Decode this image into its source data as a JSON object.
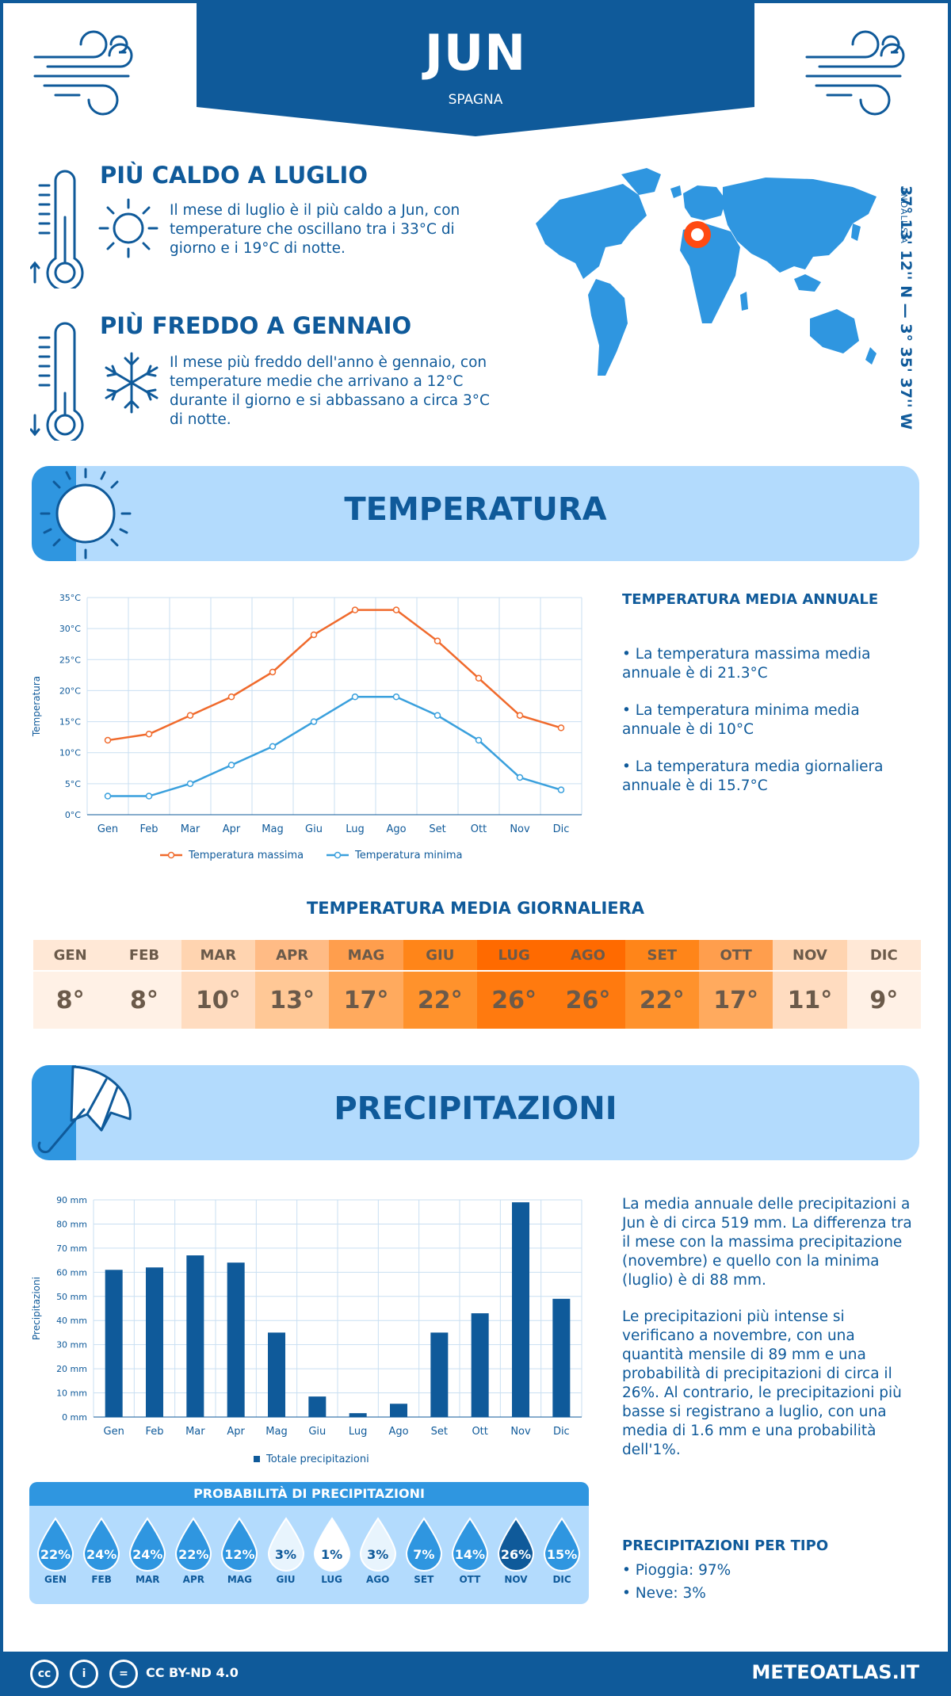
{
  "header": {
    "city": "JUN",
    "country": "SPAGNA"
  },
  "location": {
    "coords": "37° 13' 12'' N — 3° 35' 37'' W",
    "region": "ANDALUSIA"
  },
  "hottest": {
    "title": "PIÙ CALDO A LUGLIO",
    "text": "Il mese di luglio è il più caldo a Jun, con temperature che oscillano tra i 33°C di giorno e i 19°C di notte."
  },
  "coldest": {
    "title": "PIÙ FREDDO A GENNAIO",
    "text": "Il mese più freddo dell'anno è gennaio, con temperature medie che arrivano a 12°C durante il giorno e si abbassano a circa 3°C di notte."
  },
  "temperature_section": {
    "title": "TEMPERATURA",
    "side_title": "TEMPERATURA MEDIA ANNUALE",
    "bullets": [
      "• La temperatura massima media annuale è di 21.3°C",
      "• La temperatura minima media annuale è di 10°C",
      "• La temperatura media giornaliera annuale è di 15.7°C"
    ]
  },
  "daily": {
    "title": "TEMPERATURA MEDIA GIORNALIERA",
    "months": [
      "GEN",
      "FEB",
      "MAR",
      "APR",
      "MAG",
      "GIU",
      "LUG",
      "AGO",
      "SET",
      "OTT",
      "NOV",
      "DIC"
    ],
    "values": [
      "8°",
      "8°",
      "10°",
      "13°",
      "17°",
      "22°",
      "26°",
      "26°",
      "22°",
      "17°",
      "11°",
      "9°"
    ],
    "header_colors": [
      "#ffe8d6",
      "#ffe8d6",
      "#ffd4b0",
      "#ffbb85",
      "#ff9e4d",
      "#ff8519",
      "#ff6a00",
      "#ff6a00",
      "#ff8519",
      "#ff9e4d",
      "#ffd4b0",
      "#ffe8d6"
    ],
    "value_colors": [
      "#fff1e6",
      "#fff1e6",
      "#ffdcc0",
      "#ffc896",
      "#ffaa5e",
      "#ff922c",
      "#ff7a0f",
      "#ff7a0f",
      "#ff922c",
      "#ffaa5e",
      "#ffdcc0",
      "#fff1e6"
    ]
  },
  "precip_section": {
    "title": "PRECIPITAZIONI",
    "para1": "La media annuale delle precipitazioni a Jun è di circa 519 mm. La differenza tra il mese con la massima precipitazione (novembre) e quello con la minima (luglio) è di 88 mm.",
    "para2": "Le precipitazioni più intense si verificano a novembre, con una quantità mensile di 89 mm e una probabilità di precipitazioni di circa il 26%. Al contrario, le precipitazioni più basse si registrano a luglio, con una media di 1.6 mm e una probabilità dell'1%.",
    "type_title": "PRECIPITAZIONI PER TIPO",
    "types": [
      "• Pioggia: 97%",
      "• Neve: 3%"
    ]
  },
  "probability": {
    "title": "PROBABILITÀ DI PRECIPITAZIONI",
    "months": [
      "GEN",
      "FEB",
      "MAR",
      "APR",
      "MAG",
      "GIU",
      "LUG",
      "AGO",
      "SET",
      "OTT",
      "NOV",
      "DIC"
    ],
    "values": [
      "22%",
      "24%",
      "24%",
      "22%",
      "12%",
      "3%",
      "1%",
      "3%",
      "7%",
      "14%",
      "26%",
      "15%"
    ],
    "fill_colors": [
      "#2f96e0",
      "#2f96e0",
      "#2f96e0",
      "#2f96e0",
      "#2f96e0",
      "#e8f4fd",
      "#ffffff",
      "#e8f4fd",
      "#2f96e0",
      "#2f96e0",
      "#0f5a9a",
      "#2f96e0"
    ],
    "text_colors": [
      "#ffffff",
      "#ffffff",
      "#ffffff",
      "#ffffff",
      "#ffffff",
      "#0f5a9a",
      "#0f5a9a",
      "#0f5a9a",
      "#ffffff",
      "#ffffff",
      "#ffffff",
      "#ffffff"
    ]
  },
  "footer": {
    "license": "CC BY-ND 4.0",
    "brand": "METEOATLAS.IT"
  },
  "colors": {
    "primary": "#0f5a9a",
    "accent": "#2f96e0",
    "light": "#b3dbfd",
    "max_line": "#f06a2c",
    "min_line": "#3aa0dd"
  },
  "chart_data": [
    {
      "type": "line",
      "categories": [
        "Gen",
        "Feb",
        "Mar",
        "Apr",
        "Mag",
        "Giu",
        "Lug",
        "Ago",
        "Set",
        "Ott",
        "Nov",
        "Dic"
      ],
      "series": [
        {
          "name": "Temperatura massima",
          "values": [
            12,
            13,
            16,
            19,
            23,
            29,
            33,
            33,
            28,
            22,
            16,
            14
          ]
        },
        {
          "name": "Temperatura minima",
          "values": [
            3,
            3,
            5,
            8,
            11,
            15,
            19,
            19,
            16,
            12,
            6,
            4
          ]
        }
      ],
      "ylabel": "Temperatura",
      "yticks": [
        "0°C",
        "5°C",
        "10°C",
        "15°C",
        "20°C",
        "25°C",
        "30°C",
        "35°C"
      ],
      "ylim": [
        0,
        35
      ],
      "grid": true,
      "legend": "bottom"
    },
    {
      "type": "bar",
      "categories": [
        "Gen",
        "Feb",
        "Mar",
        "Apr",
        "Mag",
        "Giu",
        "Lug",
        "Ago",
        "Set",
        "Ott",
        "Nov",
        "Dic"
      ],
      "series": [
        {
          "name": "Totale precipitazioni",
          "values": [
            61,
            62,
            67,
            64,
            35,
            8.5,
            1.6,
            5.5,
            35,
            43,
            89,
            49
          ]
        }
      ],
      "ylabel": "Precipitazioni",
      "yticks": [
        "0 mm",
        "10 mm",
        "20 mm",
        "30 mm",
        "40 mm",
        "50 mm",
        "60 mm",
        "70 mm",
        "80 mm",
        "90 mm"
      ],
      "ylim": [
        0,
        90
      ],
      "grid": true,
      "legend": "bottom"
    }
  ]
}
